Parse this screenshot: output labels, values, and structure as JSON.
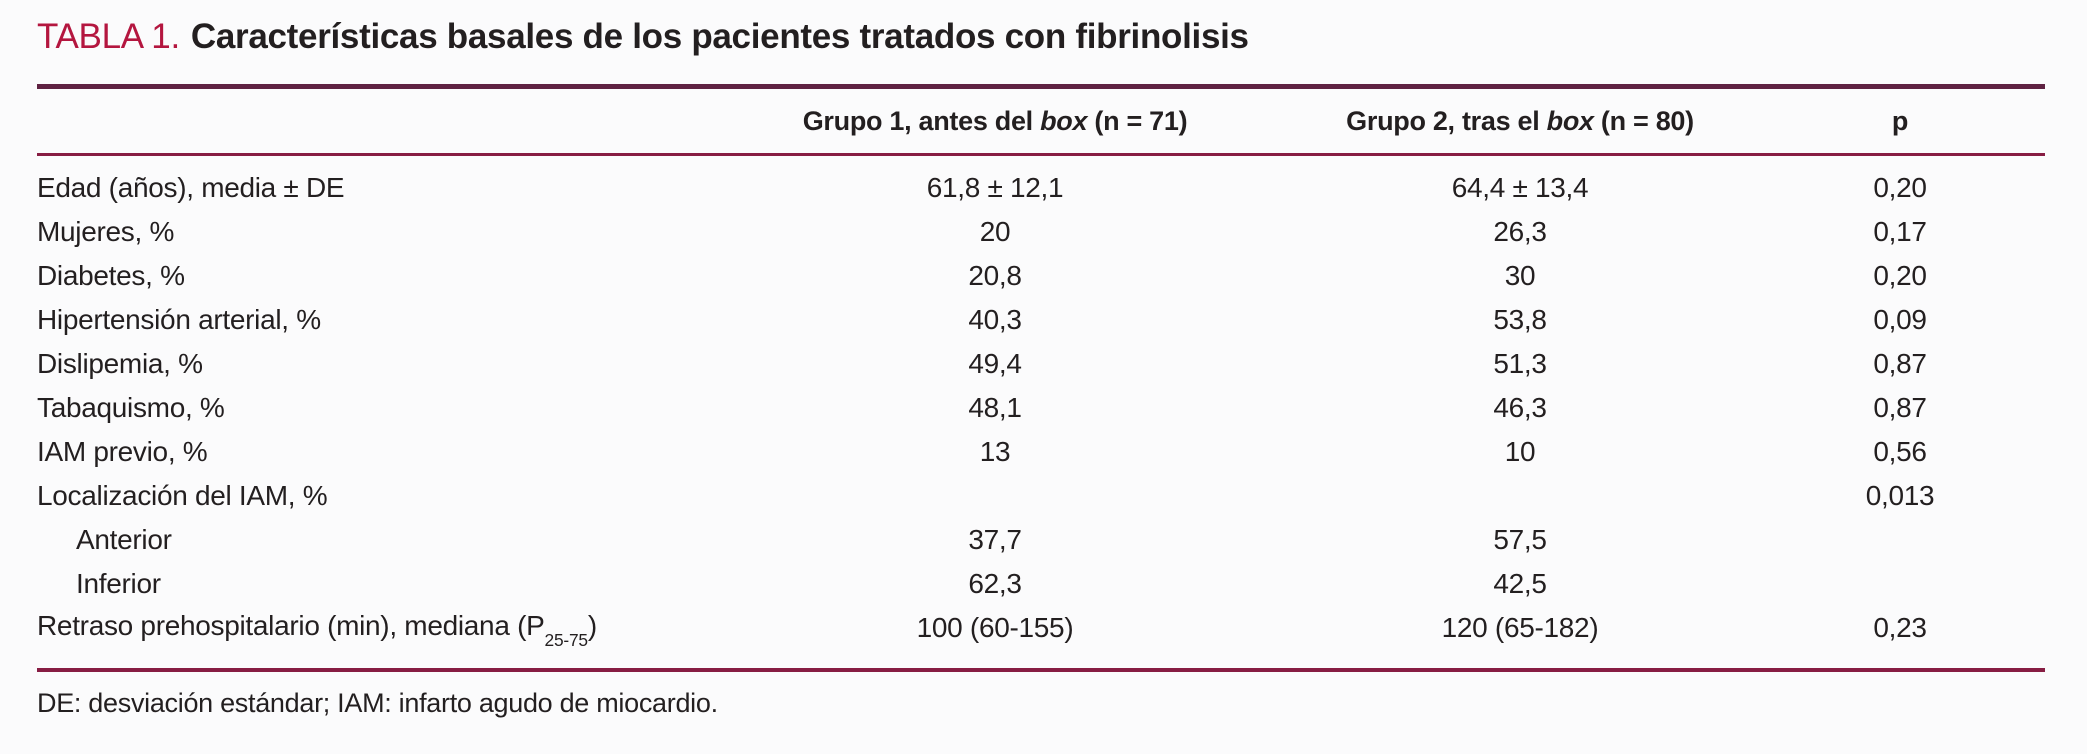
{
  "page": {
    "background": "#fbfbfc",
    "text_color": "#231f20",
    "accent_red": "#b4163f",
    "rule_thick_color": "#5f2242",
    "rule_thin_color": "#871d43"
  },
  "title": {
    "label": "TABLA 1.",
    "text": "Características basales de los pacientes tratados con fibrinolisis"
  },
  "header": {
    "group1": {
      "pre": "Grupo 1, antes del ",
      "italic": "box",
      "post": " (n = 71)"
    },
    "group2": {
      "pre": "Grupo 2, tras el ",
      "italic": "box",
      "post": " (n = 80)"
    },
    "p": "p"
  },
  "rows": [
    {
      "label": "Edad (años), media ± DE",
      "g1": "61,8 ± 12,1",
      "g2": "64,4 ± 13,4",
      "p": "0,20"
    },
    {
      "label": "Mujeres, %",
      "g1": "20",
      "g2": "26,3",
      "p": "0,17"
    },
    {
      "label": "Diabetes, %",
      "g1": "20,8",
      "g2": "30",
      "p": "0,20"
    },
    {
      "label": "Hipertensión arterial, %",
      "g1": "40,3",
      "g2": "53,8",
      "p": "0,09"
    },
    {
      "label": "Dislipemia, %",
      "g1": "49,4",
      "g2": "51,3",
      "p": "0,87"
    },
    {
      "label": "Tabaquismo, %",
      "g1": "48,1",
      "g2": "46,3",
      "p": "0,87"
    },
    {
      "label": "IAM previo, %",
      "g1": "13",
      "g2": "10",
      "p": "0,56"
    },
    {
      "label": "Localización del IAM, %",
      "g1": "",
      "g2": "",
      "p": "0,013"
    },
    {
      "label": "Anterior",
      "g1": "37,7",
      "g2": "57,5",
      "p": ""
    },
    {
      "label": "Inferior",
      "g1": "62,3",
      "g2": "42,5",
      "p": ""
    },
    {
      "label_pre": "Retraso prehospitalario (min), mediana (P",
      "label_sub": "25-75",
      "label_post": ")",
      "g1": "100 (60-155)",
      "g2": "120 (65-182)",
      "p": "0,23"
    }
  ],
  "footnote": "DE: desviación estándar; IAM: infarto agudo de miocardio."
}
